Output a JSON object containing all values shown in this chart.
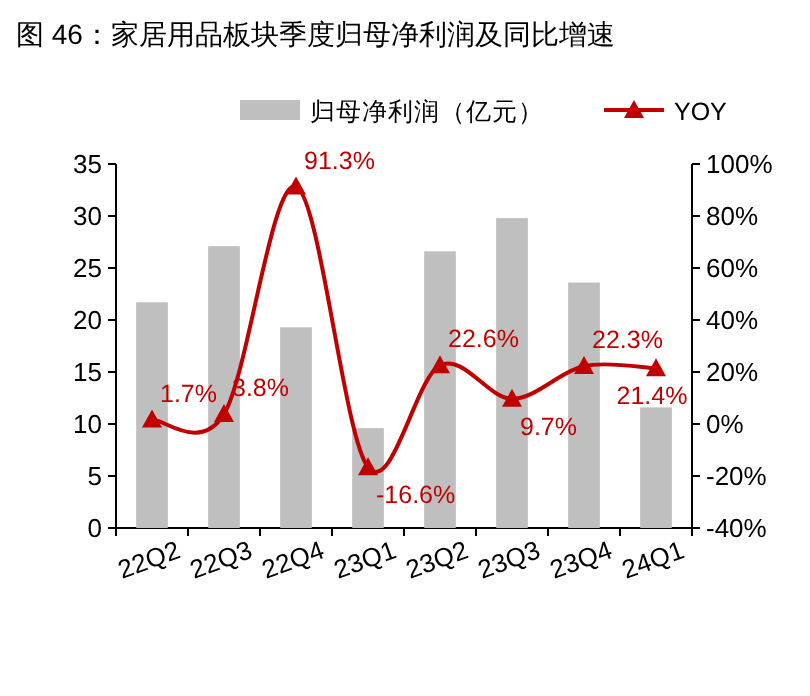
{
  "chart_data": {
    "type": "bar",
    "title": "图 46：家居用品板块季度归母净利润及同比增速",
    "categories": [
      "22Q2",
      "22Q3",
      "22Q4",
      "23Q1",
      "23Q2",
      "23Q3",
      "23Q4",
      "24Q1"
    ],
    "series": [
      {
        "name": "归母净利润（亿元）",
        "color": "#bfbfbf",
        "values": [
          21.7,
          27.1,
          19.3,
          9.6,
          26.6,
          29.8,
          23.6,
          11.6
        ]
      },
      {
        "name": "YOY",
        "type": "line",
        "axis": "y2",
        "color": "#c00000",
        "marker": "triangle",
        "values": [
          1.7,
          3.8,
          91.3,
          -16.6,
          22.6,
          9.7,
          22.3,
          21.4
        ],
        "value_labels": [
          "1.7%",
          "3.8%",
          "91.3%",
          "-16.6%",
          "22.6%",
          "9.7%",
          "22.3%",
          "21.4%"
        ]
      }
    ],
    "ylim": [
      0,
      35
    ],
    "yticks": [
      0,
      5,
      10,
      15,
      20,
      25,
      30,
      35
    ],
    "y2lim": [
      -40,
      100
    ],
    "y2ticks": [
      {
        "value": -40,
        "label": "-40%"
      },
      {
        "value": -20,
        "label": "-20%"
      },
      {
        "value": 0,
        "label": "0%"
      },
      {
        "value": 20,
        "label": "20%"
      },
      {
        "value": 40,
        "label": "40%"
      },
      {
        "value": 60,
        "label": "60%"
      },
      {
        "value": 80,
        "label": "80%"
      },
      {
        "value": 100,
        "label": "100%"
      }
    ],
    "grid": false,
    "legend": "top"
  }
}
